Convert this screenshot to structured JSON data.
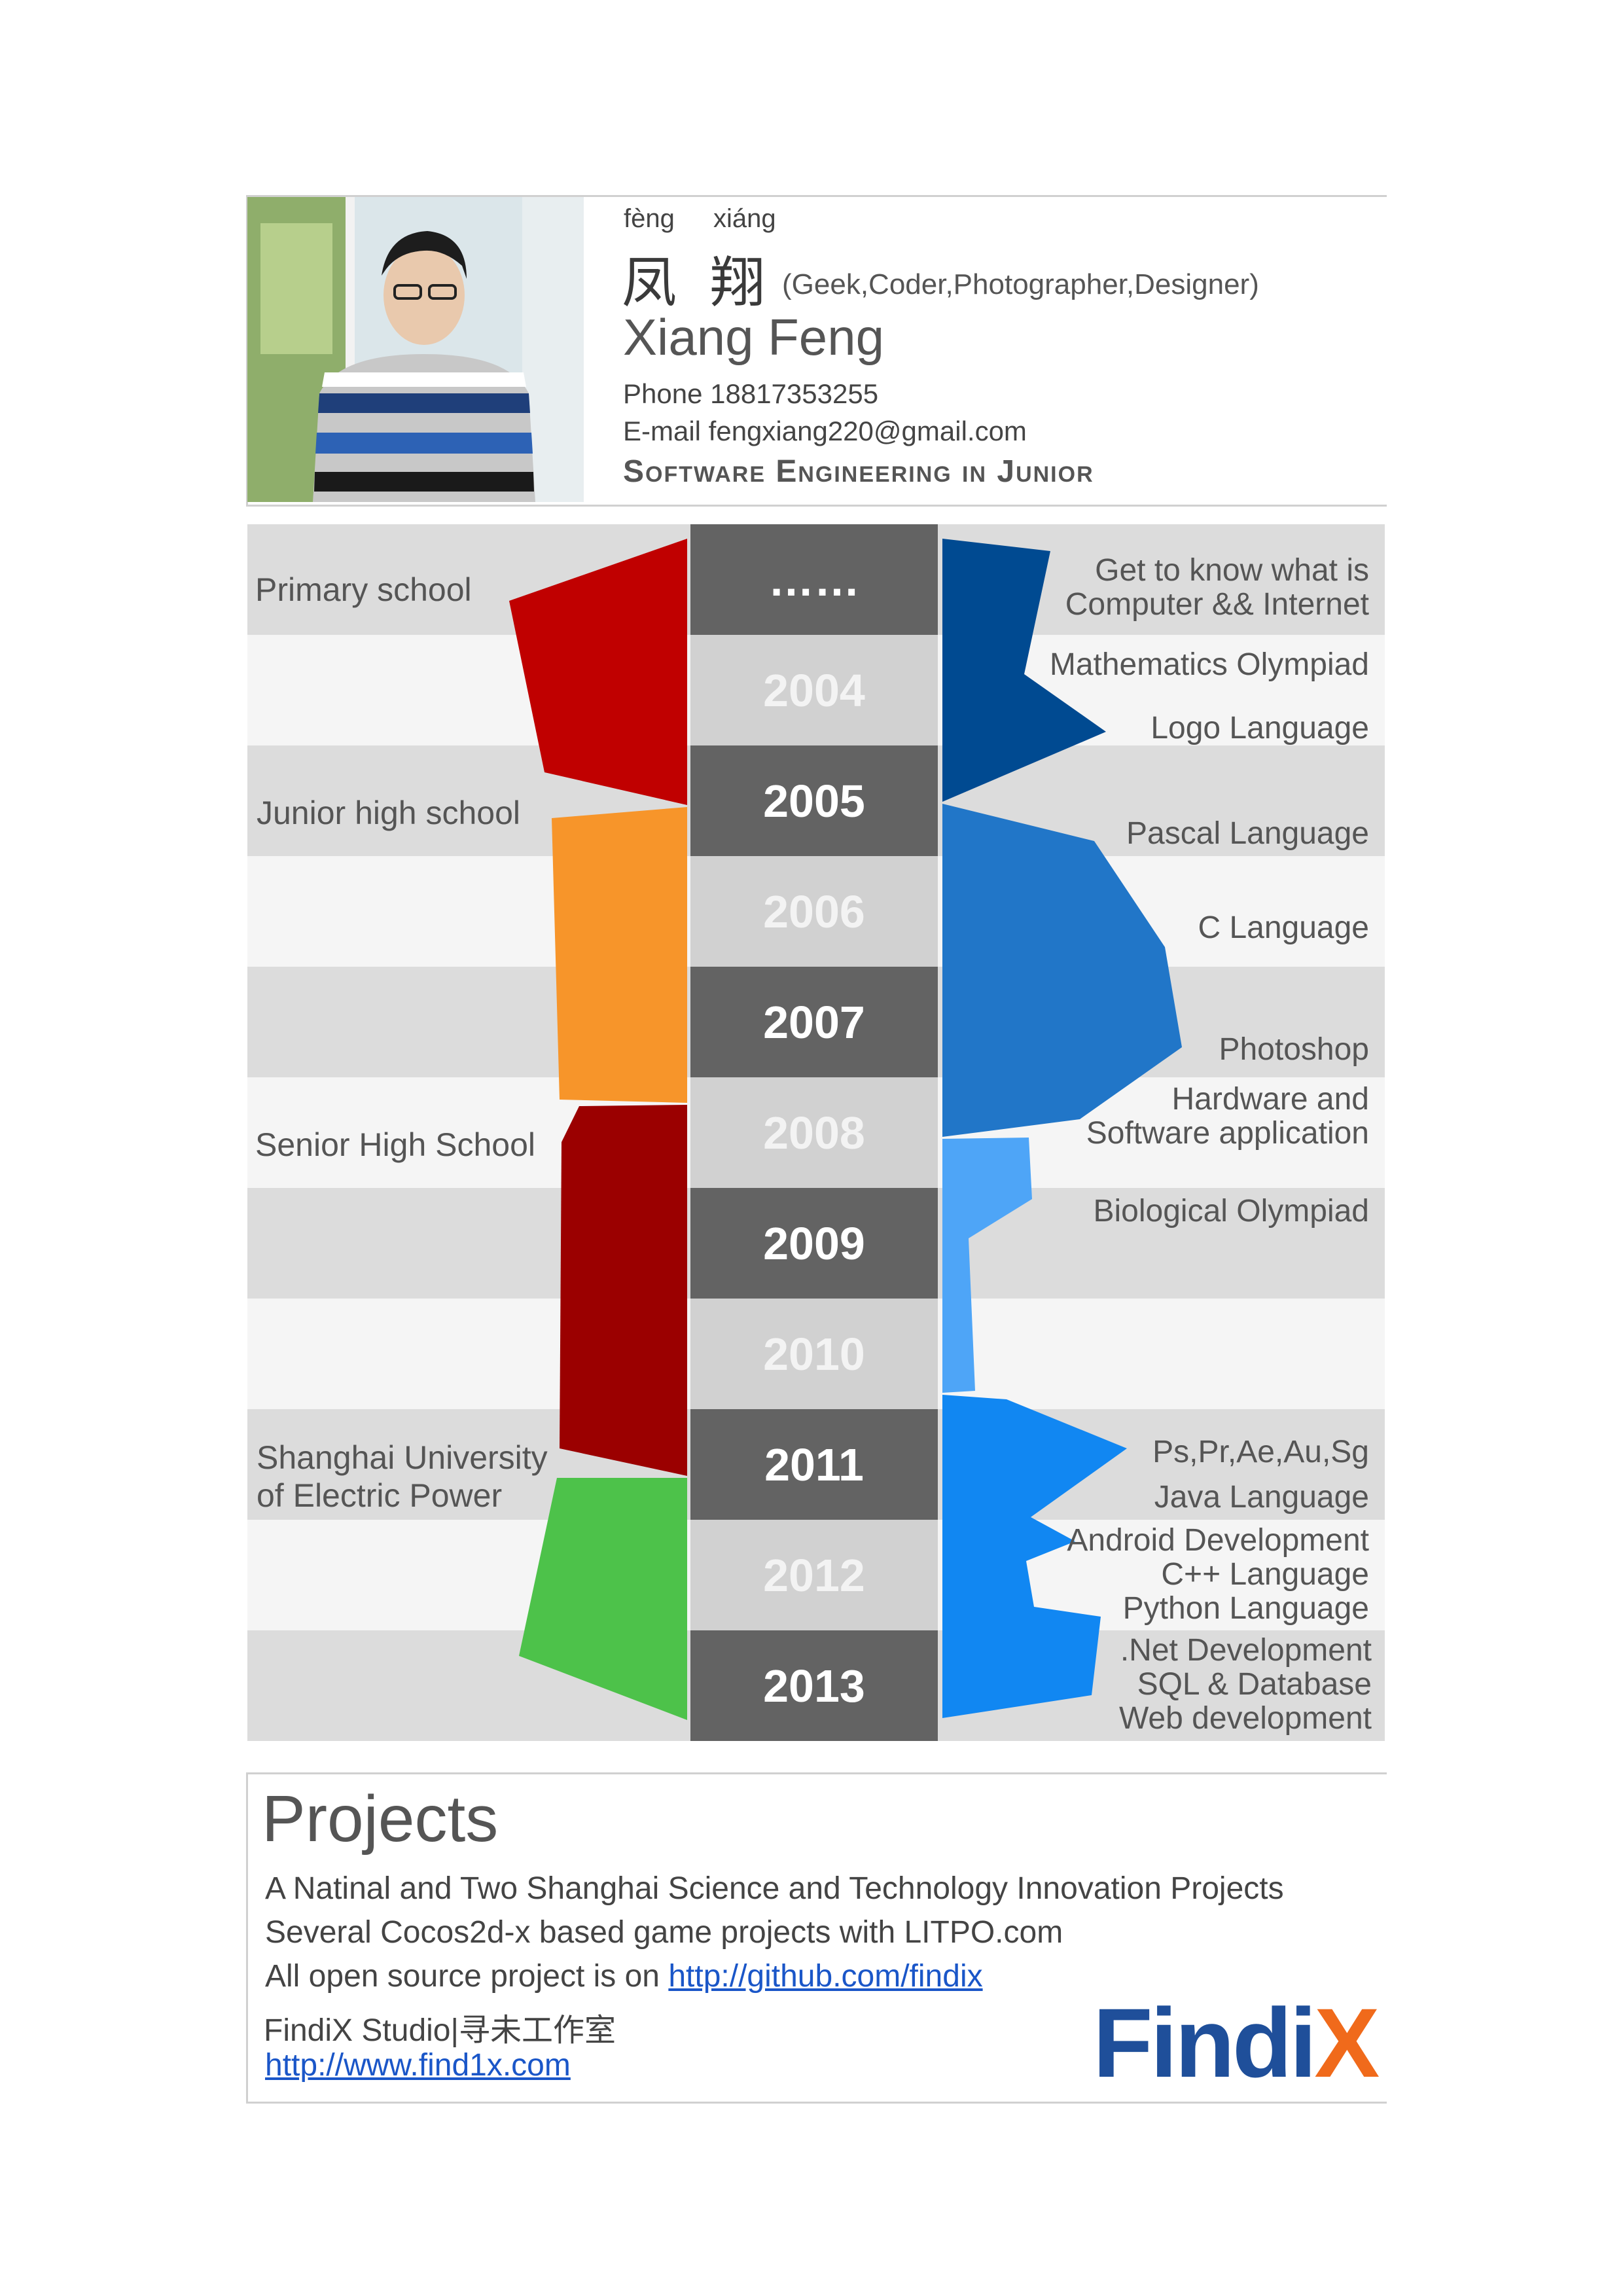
{
  "header": {
    "pinyin": [
      "fèng",
      "xiáng"
    ],
    "name_cn": [
      "凤",
      "翔"
    ],
    "roles": "(Geek,Coder,Photographer,Designer)",
    "name_en": "Xiang Feng",
    "phone": "Phone 18817353255",
    "email": "E-mail  fengxiang220@gmail.com",
    "major": "Software Engineering in Junior"
  },
  "timeline": {
    "years": [
      "……",
      "2004",
      "2005",
      "2006",
      "2007",
      "2008",
      "2009",
      "2010",
      "2011",
      "2012",
      "2013"
    ],
    "education": [
      {
        "label": "Primary school",
        "color": "#c00000"
      },
      {
        "label": "Junior high school",
        "color": "#f7952a"
      },
      {
        "label": "Senior High School",
        "color": "#9b0000"
      },
      {
        "label": "Shanghai University\nof Electric Power",
        "color": "#4dc24a"
      }
    ],
    "skills": [
      "Get to know what is\nComputer && Internet",
      "Mathematics Olympiad",
      "Logo Language",
      "Pascal Language",
      "C Language",
      "Photoshop",
      "Hardware and\nSoftware application",
      "Biological  Olympiad",
      "Ps,Pr,Ae,Au,Sg",
      "Java Language",
      "Android Development\nC++ Language\nPython Language",
      ".Net Development\nSQL & Database\nWeb development"
    ],
    "skill_colors": [
      "#004a91",
      "#2176c8",
      "#4ea5f7",
      "#1187f2"
    ]
  },
  "projects": {
    "title": "Projects",
    "lines": [
      "A Natinal and Two Shanghai Science and Technology Innovation Projects",
      "Several Cocos2d-x based game projects with LITPO.com"
    ],
    "github_prefix": "All open source project is on ",
    "github_link": "http://github.com/findix",
    "studio": "FindiX Studio|寻未工作室",
    "site_link": "http://www.find1x.com",
    "logo": {
      "left": "Findi",
      "right": "X",
      "left_color": "#1f4f9a",
      "right_color": "#f06a1b"
    }
  }
}
